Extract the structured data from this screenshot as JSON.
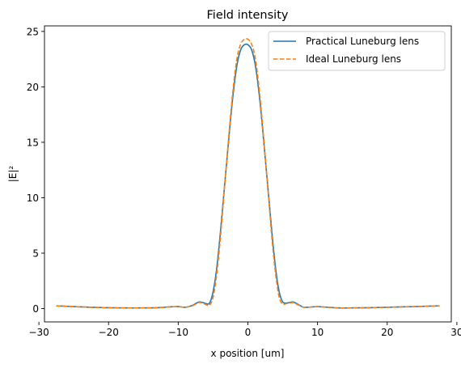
{
  "chart_data": {
    "type": "line",
    "title": "Field intensity",
    "xlabel": "x position [um]",
    "ylabel": "|E|²",
    "xlim": [
      -29.2,
      29.2
    ],
    "ylim": [
      -1.2,
      25.5
    ],
    "xticks": [
      -30,
      -20,
      -10,
      0,
      10,
      20,
      30
    ],
    "yticks": [
      0,
      5,
      10,
      15,
      20,
      25
    ],
    "grid": false,
    "legend_position": "top-right",
    "series": [
      {
        "name": "Practical Luneburg lens",
        "color": "#1f77b4",
        "style": "solid",
        "x": [
          -27.5,
          -25,
          -22.5,
          -20,
          -17.5,
          -15,
          -13,
          -12,
          -11,
          -10,
          -9,
          -8,
          -7.5,
          -7,
          -6.5,
          -6,
          -5.5,
          -5,
          -4.5,
          -4,
          -3.5,
          -3,
          -2.5,
          -2,
          -1.5,
          -1,
          -0.5,
          0,
          0.5,
          1,
          1.5,
          2,
          2.5,
          3,
          3.5,
          4,
          4.5,
          5,
          5.5,
          6,
          6.5,
          7,
          7.5,
          8,
          9,
          10,
          11,
          12,
          13,
          15,
          17.5,
          20,
          22.5,
          25,
          27.5
        ],
        "y": [
          0.25,
          0.18,
          0.12,
          0.08,
          0.06,
          0.06,
          0.08,
          0.12,
          0.16,
          0.18,
          0.12,
          0.28,
          0.45,
          0.6,
          0.55,
          0.45,
          0.5,
          1.5,
          3.5,
          6.5,
          10.0,
          13.5,
          17.0,
          20.0,
          22.2,
          23.4,
          23.8,
          23.8,
          23.4,
          22.2,
          20.0,
          17.0,
          13.5,
          10.0,
          6.5,
          3.5,
          1.5,
          0.6,
          0.5,
          0.55,
          0.6,
          0.45,
          0.28,
          0.12,
          0.14,
          0.18,
          0.14,
          0.1,
          0.06,
          0.06,
          0.08,
          0.12,
          0.16,
          0.2,
          0.25
        ]
      },
      {
        "name": "Ideal Luneburg lens",
        "color": "#ff7f0e",
        "style": "dashed",
        "x": [
          -27.5,
          -25,
          -22.5,
          -20,
          -17.5,
          -15,
          -13,
          -12,
          -11,
          -10,
          -9,
          -8,
          -7.5,
          -7,
          -6.5,
          -6,
          -5.5,
          -5,
          -4.5,
          -4,
          -3.5,
          -3,
          -2.5,
          -2,
          -1.5,
          -1,
          -0.5,
          0,
          0.5,
          1,
          1.5,
          2,
          2.5,
          3,
          3.5,
          4,
          4.5,
          5,
          5.5,
          6,
          6.5,
          7,
          7.5,
          8,
          9,
          10,
          11,
          12,
          13,
          15,
          17.5,
          20,
          22.5,
          25,
          27.5
        ],
        "y": [
          0.25,
          0.18,
          0.12,
          0.08,
          0.06,
          0.06,
          0.08,
          0.12,
          0.16,
          0.18,
          0.12,
          0.25,
          0.4,
          0.55,
          0.5,
          0.35,
          0.3,
          1.0,
          3.0,
          6.0,
          9.8,
          13.6,
          17.3,
          20.5,
          22.8,
          23.9,
          24.3,
          24.3,
          23.9,
          22.8,
          20.5,
          17.3,
          13.6,
          9.8,
          6.0,
          3.0,
          1.0,
          0.4,
          0.45,
          0.5,
          0.55,
          0.4,
          0.25,
          0.12,
          0.14,
          0.18,
          0.14,
          0.1,
          0.06,
          0.06,
          0.08,
          0.12,
          0.16,
          0.2,
          0.25
        ]
      }
    ]
  }
}
